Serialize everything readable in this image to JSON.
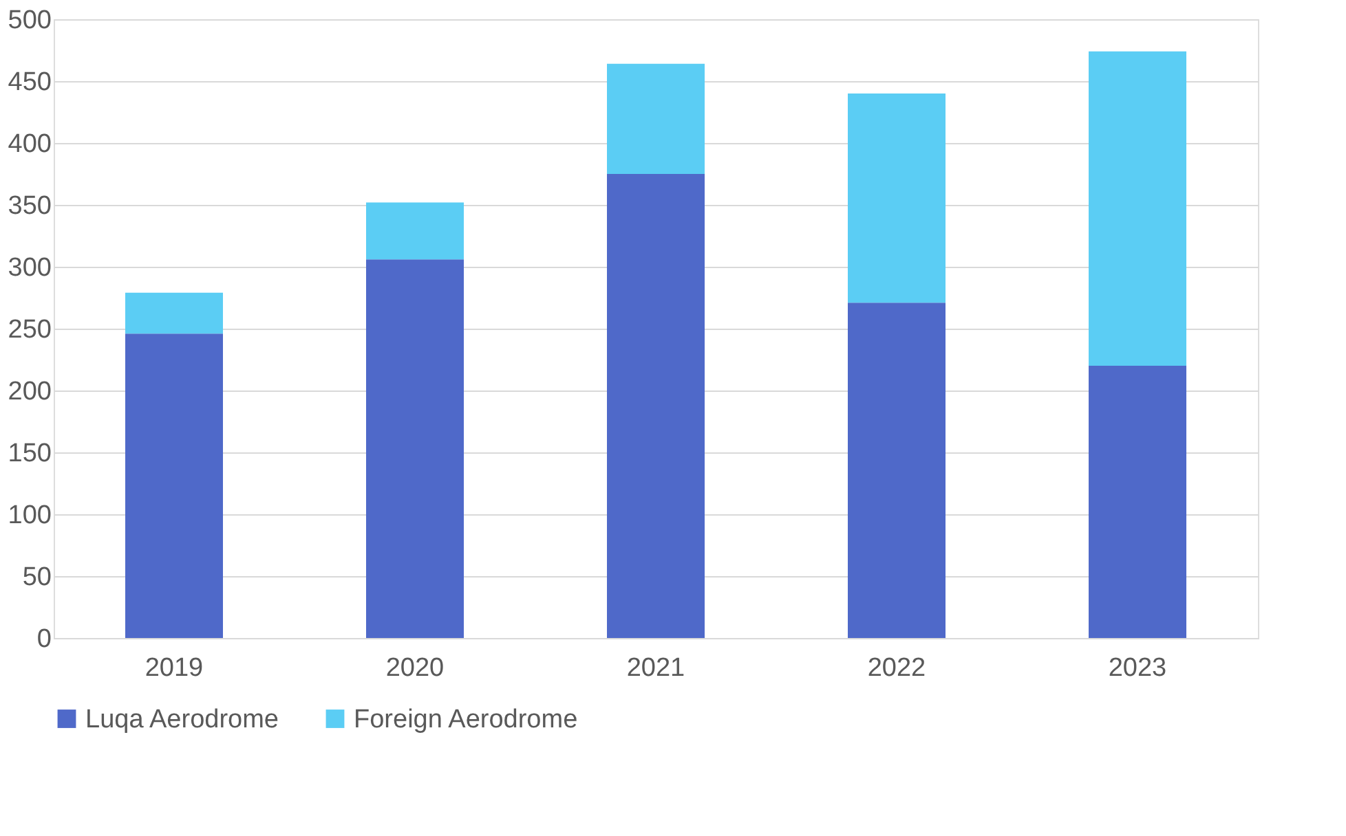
{
  "chart_data": {
    "type": "bar",
    "stacked": true,
    "categories": [
      "2019",
      "2020",
      "2021",
      "2022",
      "2023"
    ],
    "series": [
      {
        "name": "Luqa Aerodrome",
        "color": "#4f69c9",
        "values": [
          246,
          306,
          375,
          271,
          220
        ]
      },
      {
        "name": "Foreign Aerodrome",
        "color": "#5bcdf4",
        "values": [
          33,
          46,
          89,
          169,
          254
        ]
      }
    ],
    "ylim": [
      0,
      500
    ],
    "yticks": [
      0,
      50,
      100,
      150,
      200,
      250,
      300,
      350,
      400,
      450,
      500
    ],
    "grid": "y",
    "legend": "bottom"
  }
}
